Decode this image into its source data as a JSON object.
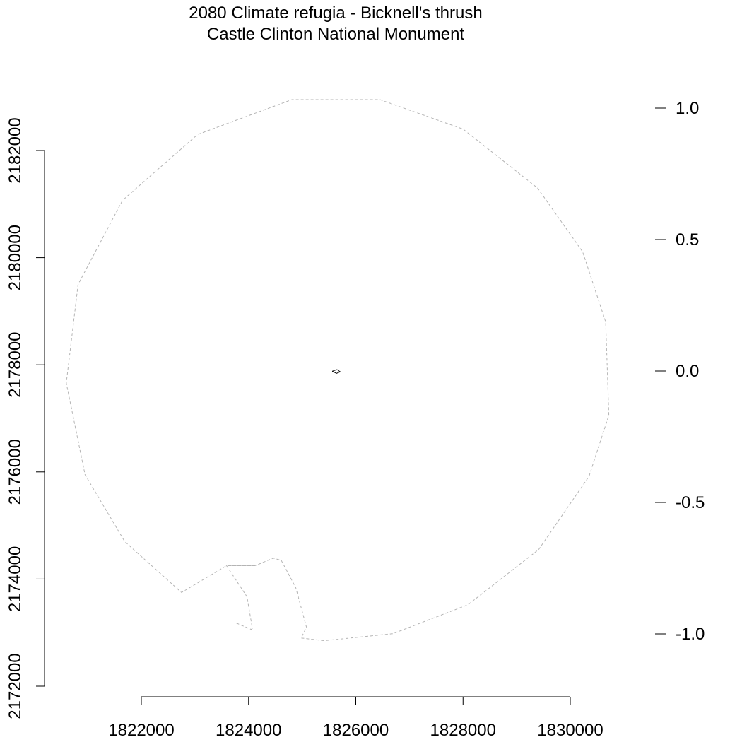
{
  "chart_data": {
    "type": "map",
    "title": "2080 Climate refugia - Bicknell's thrush",
    "subtitle": "Castle Clinton National Monument",
    "x_axis": {
      "ticks": [
        1822000,
        1824000,
        1826000,
        1828000,
        1830000
      ],
      "tick_labels": [
        "1822000",
        "1824000",
        "1826000",
        "1828000",
        "1830000"
      ],
      "range": [
        1820000,
        1831000
      ]
    },
    "y_axis": {
      "ticks": [
        2172000,
        2174000,
        2176000,
        2178000,
        2180000,
        2182000
      ],
      "tick_labels": [
        "2172000",
        "2174000",
        "2176000",
        "2178000",
        "2180000",
        "2182000"
      ],
      "range": [
        2172000,
        2183000
      ]
    },
    "legend_axis": {
      "position": "right",
      "ticks": [
        1.0,
        0.5,
        0.0,
        -0.5,
        -1.0
      ],
      "tick_labels": [
        "1.0",
        "0.5",
        "0.0",
        "-0.5",
        "-1.0"
      ],
      "range": [
        -1.25,
        1.1
      ]
    },
    "series": [
      {
        "kind": "boundary",
        "style": "dashed",
        "color": "#b4b4b4",
        "points": [
          [
            1824120,
            2174250
          ],
          [
            1823590,
            2174250
          ],
          [
            1822750,
            2173750
          ],
          [
            1821690,
            2174700
          ],
          [
            1820950,
            2175950
          ],
          [
            1820600,
            2177660
          ],
          [
            1820820,
            2179500
          ],
          [
            1821650,
            2181070
          ],
          [
            1823050,
            2182300
          ],
          [
            1824810,
            2182950
          ],
          [
            1826450,
            2182950
          ],
          [
            1828000,
            2182400
          ],
          [
            1829390,
            2181300
          ],
          [
            1830230,
            2180110
          ],
          [
            1830660,
            2178800
          ],
          [
            1830720,
            2177060
          ],
          [
            1830350,
            2175920
          ],
          [
            1829410,
            2174550
          ],
          [
            1828090,
            2173520
          ],
          [
            1826690,
            2172980
          ],
          [
            1825410,
            2172850
          ],
          [
            1824980,
            2172900
          ],
          [
            1825080,
            2173100
          ],
          [
            1824880,
            2173840
          ],
          [
            1824610,
            2174350
          ],
          [
            1824460,
            2174390
          ],
          [
            1824120,
            2174250
          ],
          [
            1823590,
            2174250
          ],
          [
            1823970,
            2173670
          ],
          [
            1824070,
            2173080
          ],
          [
            1824050,
            2173060
          ],
          [
            1823770,
            2173180
          ]
        ]
      },
      {
        "kind": "site",
        "style": "solid",
        "color": "#000000",
        "points": [
          [
            1825560,
            2177880
          ],
          [
            1825650,
            2177910
          ],
          [
            1825710,
            2177870
          ],
          [
            1825640,
            2177840
          ],
          [
            1825560,
            2177880
          ]
        ]
      }
    ],
    "grid": false,
    "legend": "none"
  }
}
